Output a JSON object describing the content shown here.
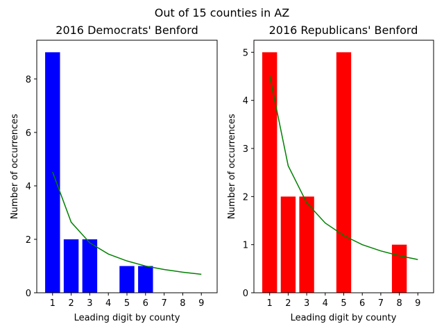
{
  "suptitle": "Out of 15 counties in AZ",
  "chart_data": [
    {
      "type": "bar",
      "title": "2016 Democrats' Benford",
      "xlabel": "Leading digit by county",
      "ylabel": "Number of occurrences",
      "categories": [
        "1",
        "2",
        "3",
        "4",
        "5",
        "6",
        "7",
        "8",
        "9"
      ],
      "xlim": [
        0.15,
        9.85
      ],
      "ylim": [
        0,
        9.45
      ],
      "yticks": [
        0,
        2,
        4,
        6,
        8
      ],
      "series": [
        {
          "kind": "bar",
          "color": "#0000ff",
          "values": [
            9,
            2,
            2,
            0,
            1,
            1,
            0,
            0,
            0
          ]
        },
        {
          "kind": "line",
          "color": "#008000",
          "values": [
            4.52,
            2.64,
            1.87,
            1.45,
            1.19,
            1.0,
            0.87,
            0.77,
            0.69
          ]
        }
      ]
    },
    {
      "type": "bar",
      "title": "2016 Republicans' Benford",
      "xlabel": "Leading digit by county",
      "ylabel": "Number of occurrences",
      "categories": [
        "1",
        "2",
        "3",
        "4",
        "5",
        "6",
        "7",
        "8",
        "9"
      ],
      "xlim": [
        0.15,
        9.85
      ],
      "ylim": [
        0,
        5.25
      ],
      "yticks": [
        0,
        1,
        2,
        3,
        4,
        5
      ],
      "series": [
        {
          "kind": "bar",
          "color": "#ff0000",
          "values": [
            5,
            2,
            2,
            0,
            5,
            0,
            0,
            1,
            0
          ]
        },
        {
          "kind": "line",
          "color": "#008000",
          "values": [
            4.52,
            2.64,
            1.87,
            1.45,
            1.19,
            1.0,
            0.87,
            0.77,
            0.69
          ]
        }
      ]
    }
  ]
}
